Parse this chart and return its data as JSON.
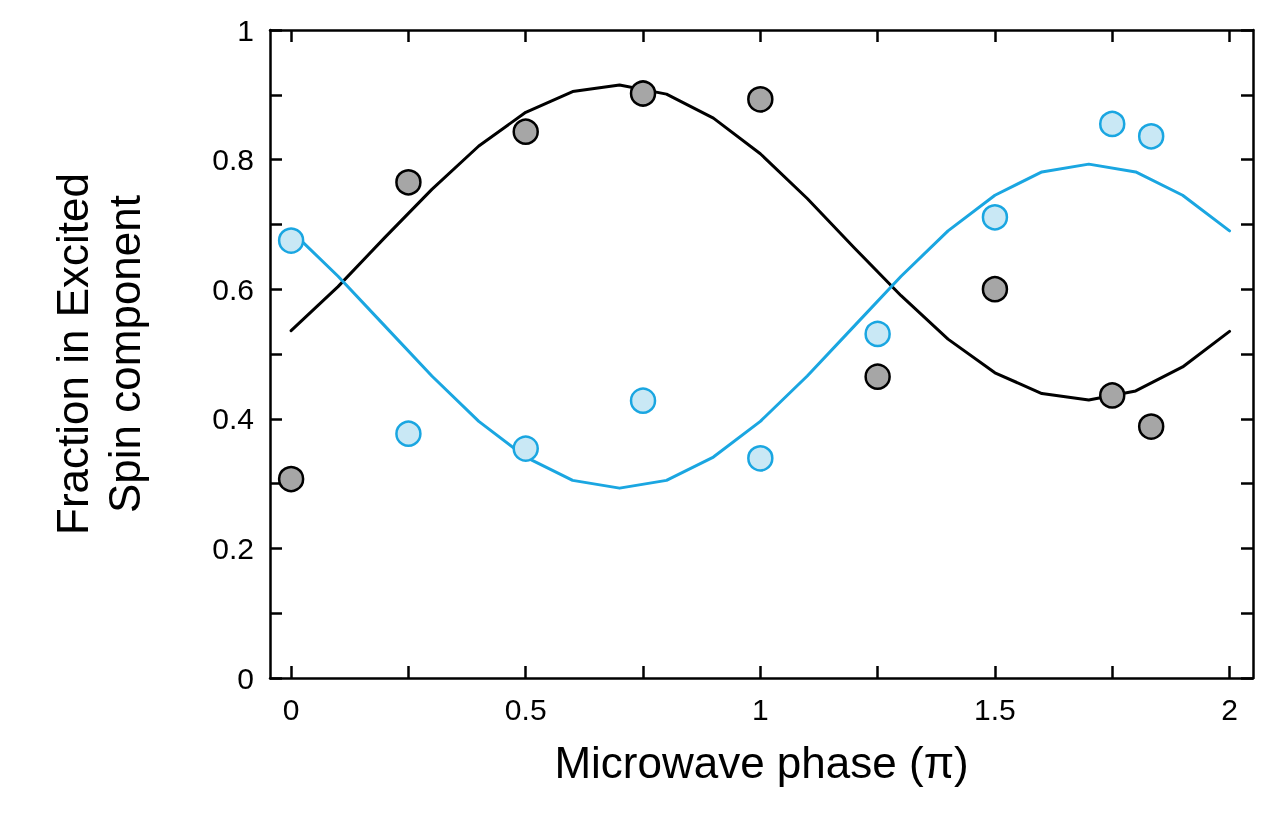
{
  "chart_data": {
    "type": "scatter",
    "xlabel": "Microwave phase (π)",
    "ylabel": "Fraction in Excited\nSpin component",
    "xlim": [
      -0.045,
      2.05
    ],
    "ylim": [
      0,
      1
    ],
    "xticks": [
      0,
      {
        "value": 0.25,
        "label": null
      },
      0.5,
      {
        "value": 0.75,
        "label": null
      },
      1,
      {
        "value": 1.25,
        "label": null
      },
      1.5,
      {
        "value": 1.75,
        "label": null
      },
      2
    ],
    "yticks": [
      0,
      {
        "value": 0.1,
        "label": null
      },
      0.2,
      {
        "value": 0.3,
        "label": null
      },
      0.4,
      {
        "value": 0.5,
        "label": null
      },
      0.6,
      {
        "value": 0.7,
        "label": null
      },
      0.8,
      {
        "value": 0.9,
        "label": null
      },
      1
    ],
    "grid": false,
    "marker": "circle",
    "series": [
      {
        "type": "line",
        "color": "#000000",
        "line_style": "solid",
        "marker": "none",
        "x": [
          0,
          0.1,
          0.2,
          0.3,
          0.4,
          0.5,
          0.6,
          0.7,
          0.8,
          0.9,
          1,
          1.1,
          1.2,
          1.3,
          1.4,
          1.5,
          1.6,
          1.7,
          1.8,
          1.9,
          2
        ],
        "values": [
          0.536,
          0.604,
          0.68,
          0.754,
          0.821,
          0.873,
          0.905,
          0.915,
          0.901,
          0.864,
          0.809,
          0.74,
          0.664,
          0.59,
          0.523,
          0.471,
          0.439,
          0.429,
          0.443,
          0.48,
          0.535
        ]
      },
      {
        "type": "line",
        "color": "#1aa6e1",
        "line_style": "solid",
        "marker": "none",
        "x": [
          0,
          0.1,
          0.2,
          0.3,
          0.4,
          0.5,
          0.6,
          0.7,
          0.8,
          0.9,
          1,
          1.1,
          1.2,
          1.3,
          1.4,
          1.5,
          1.6,
          1.7,
          1.8,
          1.9,
          2
        ],
        "values": [
          0.69,
          0.62,
          0.543,
          0.466,
          0.396,
          0.341,
          0.305,
          0.293,
          0.305,
          0.341,
          0.396,
          0.466,
          0.543,
          0.62,
          0.69,
          0.745,
          0.781,
          0.793,
          0.781,
          0.745,
          0.69
        ]
      },
      {
        "color": "#a6a6a6",
        "x": [
          0,
          0.25,
          0.5,
          0.75,
          1,
          1.25,
          1.5,
          1.75,
          1.833
        ],
        "values": [
          0.307,
          0.765,
          0.843,
          0.902,
          0.893,
          0.465,
          0.6,
          0.436,
          0.388
        ]
      },
      {
        "color": "#c9e8f5",
        "x": [
          0,
          0.25,
          0.5,
          0.75,
          1,
          1.25,
          1.5,
          1.75,
          1.833
        ],
        "values": [
          0.675,
          0.377,
          0.354,
          0.428,
          0.339,
          0.531,
          0.711,
          0.855,
          0.836
        ]
      }
    ]
  }
}
